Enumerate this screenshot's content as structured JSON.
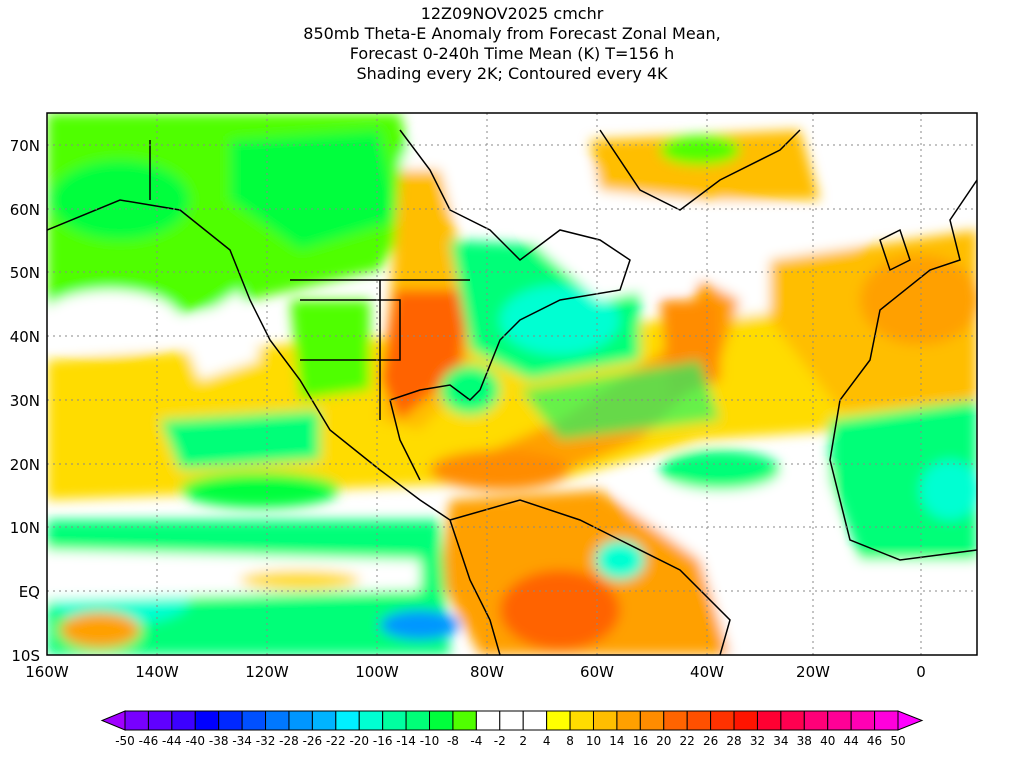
{
  "title": {
    "lines": [
      "12Z09NOV2025 cmchr",
      "850mb Theta-E Anomaly from Forecast Zonal Mean,",
      "Forecast 0-240h Time Mean (K) T=156 h",
      "Shading every 2K; Contoured every 4K"
    ]
  },
  "axes": {
    "lon_labels": [
      "160W",
      "140W",
      "120W",
      "100W",
      "80W",
      "60W",
      "40W",
      "20W",
      "0"
    ],
    "lat_labels": [
      "70N",
      "60N",
      "50N",
      "40N",
      "30N",
      "20N",
      "10N",
      "EQ",
      "10S"
    ]
  },
  "colorbar": {
    "labels": [
      "-50",
      "-46",
      "-44",
      "-40",
      "-38",
      "-34",
      "-32",
      "-28",
      "-26",
      "-22",
      "-20",
      "-16",
      "-14",
      "-10",
      "-8",
      "-4",
      "-2",
      "2",
      "4",
      "8",
      "10",
      "14",
      "16",
      "20",
      "22",
      "26",
      "28",
      "32",
      "34",
      "38",
      "40",
      "44",
      "46",
      "50"
    ],
    "left_arrow_color": "#a000ff",
    "right_arrow_color": "#ff00ff",
    "colors": [
      "#7800ff",
      "#6000ff",
      "#3c00ff",
      "#0000ff",
      "#0028ff",
      "#0050ff",
      "#0078ff",
      "#0096ff",
      "#00b4ff",
      "#00f0ff",
      "#00ffd2",
      "#00ffa0",
      "#00ff78",
      "#00ff3c",
      "#50ff00",
      "#ffffff",
      "#ffffff",
      "#ffffff",
      "#ffff00",
      "#ffdc00",
      "#ffbe00",
      "#ffa000",
      "#ff8c00",
      "#ff6400",
      "#ff5000",
      "#ff3200",
      "#ff1400",
      "#ff0032",
      "#ff0050",
      "#ff0078",
      "#ff0096",
      "#ff00b4",
      "#ff00dc"
    ]
  }
}
